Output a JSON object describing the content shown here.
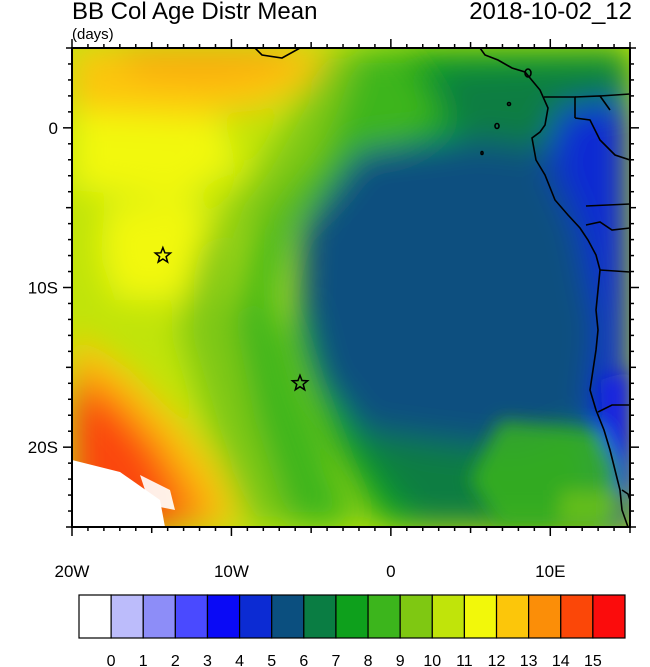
{
  "header": {
    "title": "BB Col Age Distr Mean",
    "units": "(days)",
    "datetime": "2018-10-02_12"
  },
  "axes": {
    "lon_labels": [
      "20W",
      "10W",
      "0",
      "10E"
    ],
    "lat_labels": [
      "0",
      "10S",
      "20S"
    ]
  },
  "colorbar": {
    "labels": [
      "0",
      "1",
      "2",
      "3",
      "4",
      "5",
      "6",
      "7",
      "8",
      "9",
      "10",
      "11",
      "12",
      "13",
      "14",
      "15"
    ],
    "colors": [
      "#ffffff",
      "#bcbcfb",
      "#8d8df8",
      "#4a4aff",
      "#0a0af6",
      "#0c2bd3",
      "#0b4f7f",
      "#0a7d43",
      "#0ea01c",
      "#3cb51c",
      "#7fc812",
      "#c0e40a",
      "#f2f80a",
      "#fcc60a",
      "#fb8e08",
      "#fb4708",
      "#fb0c0c"
    ]
  },
  "markers": [
    {
      "name": "star-marker-1",
      "lon": -14.3,
      "lat": -8.0
    },
    {
      "name": "star-marker-2",
      "lon": -5.7,
      "lat": -16.0
    }
  ],
  "chart_data": {
    "type": "heatmap",
    "title": "BB Col Age Distr Mean",
    "units": "(days)",
    "lon_range": [
      -20,
      15
    ],
    "lat_range": [
      -25,
      5
    ],
    "value_range": [
      0,
      15
    ],
    "levels": [
      0,
      1,
      2,
      3,
      4,
      5,
      6,
      7,
      8,
      9,
      10,
      11,
      12,
      13,
      14,
      15
    ]
  }
}
